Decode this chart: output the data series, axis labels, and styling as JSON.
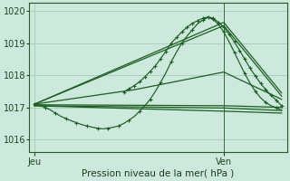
{
  "xlabel": "Pression niveau de la mer( hPa )",
  "ylim": [
    1015.6,
    1020.25
  ],
  "xlim": [
    0,
    49
  ],
  "yticks": [
    1016,
    1017,
    1018,
    1019,
    1020
  ],
  "xtick_positions": [
    1,
    37
  ],
  "xtick_labels": [
    "Jeu",
    "Ven"
  ],
  "vline_x": 37,
  "bg_color": "#cde8dc",
  "grid_color": "#9ac8b2",
  "line_color": "#1a6020",
  "series": {
    "dip_main": {
      "x": [
        1,
        2,
        3,
        4,
        5,
        6,
        7,
        8,
        9,
        10,
        11,
        12,
        13,
        14,
        15,
        16,
        17,
        18,
        19,
        20,
        21,
        22,
        23,
        24,
        25,
        26,
        27,
        28,
        29,
        30,
        31,
        32,
        33,
        34,
        35,
        36,
        37,
        38,
        39,
        40,
        41,
        42,
        43,
        44,
        45,
        46,
        47,
        48
      ],
      "y": [
        1017.1,
        1017.05,
        1017.0,
        1016.92,
        1016.82,
        1016.72,
        1016.65,
        1016.58,
        1016.52,
        1016.46,
        1016.42,
        1016.38,
        1016.35,
        1016.33,
        1016.35,
        1016.38,
        1016.42,
        1016.5,
        1016.6,
        1016.72,
        1016.88,
        1017.05,
        1017.25,
        1017.5,
        1017.78,
        1018.08,
        1018.42,
        1018.72,
        1019.0,
        1019.22,
        1019.42,
        1019.6,
        1019.72,
        1019.8,
        1019.75,
        1019.58,
        1019.35,
        1019.05,
        1018.72,
        1018.38,
        1018.05,
        1017.75,
        1017.5,
        1017.3,
        1017.15,
        1017.05,
        1016.98,
        1016.92
      ]
    },
    "rise_high1": {
      "x": [
        1,
        37,
        48
      ],
      "y": [
        1017.1,
        1019.65,
        1017.45
      ]
    },
    "rise_high2": {
      "x": [
        1,
        37,
        48
      ],
      "y": [
        1017.1,
        1019.55,
        1017.35
      ]
    },
    "rise_mid": {
      "x": [
        1,
        20,
        37,
        48
      ],
      "y": [
        1017.1,
        1017.55,
        1018.1,
        1017.25
      ]
    },
    "flat_top": {
      "x": [
        1,
        37,
        48
      ],
      "y": [
        1017.08,
        1017.05,
        1017.0
      ]
    },
    "flat_mid": {
      "x": [
        1,
        37,
        48
      ],
      "y": [
        1017.05,
        1016.98,
        1016.9
      ]
    },
    "flat_low": {
      "x": [
        1,
        37,
        48
      ],
      "y": [
        1017.05,
        1016.88,
        1016.82
      ]
    },
    "bump_detail": {
      "x": [
        18,
        19,
        20,
        21,
        22,
        23,
        24,
        25,
        26,
        27,
        28,
        29,
        30,
        31,
        32,
        33,
        34,
        35,
        36,
        37,
        38,
        39,
        40,
        41,
        42,
        43,
        44,
        45,
        46,
        47,
        48
      ],
      "y": [
        1017.48,
        1017.58,
        1017.68,
        1017.8,
        1017.95,
        1018.12,
        1018.3,
        1018.52,
        1018.75,
        1019.0,
        1019.18,
        1019.35,
        1019.5,
        1019.62,
        1019.7,
        1019.78,
        1019.82,
        1019.78,
        1019.65,
        1019.5,
        1019.28,
        1019.05,
        1018.78,
        1018.5,
        1018.22,
        1017.98,
        1017.75,
        1017.55,
        1017.38,
        1017.22,
        1017.05
      ]
    }
  }
}
